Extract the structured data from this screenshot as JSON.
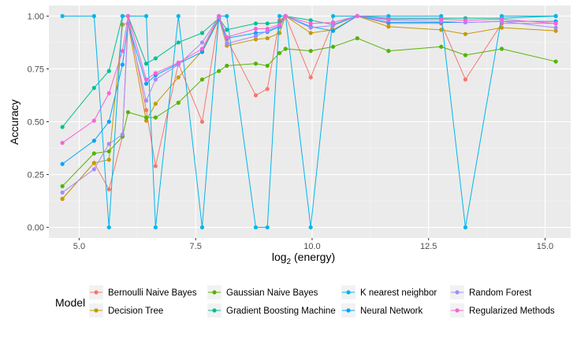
{
  "chart_data": {
    "type": "line",
    "title": "",
    "xlabel_main": "log",
    "xlabel_sub": "2",
    "xlabel_rest": " (energy)",
    "ylabel": "Accuracy",
    "xlim": [
      4.35,
      15.55
    ],
    "ylim": [
      -0.05,
      1.05
    ],
    "x_ticks": [
      5.0,
      7.5,
      10.0,
      12.5,
      15.0
    ],
    "x_tick_labels": [
      "5.0",
      "7.5",
      "10.0",
      "12.5",
      "15.0"
    ],
    "y_ticks": [
      0.0,
      0.25,
      0.5,
      0.75,
      1.0
    ],
    "y_tick_labels": [
      "0.00",
      "0.25",
      "0.50",
      "0.75",
      "1.00"
    ],
    "grid": true,
    "legend_title": "Model",
    "legend_position": "bottom",
    "x": [
      4.64,
      5.32,
      5.64,
      5.93,
      6.05,
      6.44,
      6.64,
      7.13,
      7.64,
      8.0,
      8.17,
      8.79,
      9.04,
      9.3,
      9.43,
      9.97,
      10.45,
      10.97,
      11.64,
      12.77,
      13.29,
      14.07,
      15.23
    ],
    "series": [
      {
        "name": "Bernoulli Naive Bayes",
        "color": "#F8766D",
        "values": [
          0.135,
          0.305,
          0.18,
          0.43,
          1.0,
          0.555,
          0.29,
          0.775,
          0.5,
          1.0,
          0.89,
          0.625,
          0.655,
          0.98,
          1.0,
          0.71,
          0.97,
          1.0,
          0.965,
          0.965,
          0.7,
          0.965,
          0.965
        ]
      },
      {
        "name": "Decision Tree",
        "color": "#C49A00",
        "values": [
          0.135,
          0.305,
          0.32,
          0.96,
          0.965,
          0.505,
          0.585,
          0.71,
          0.835,
          0.99,
          0.86,
          0.89,
          0.895,
          0.92,
          1.0,
          0.92,
          0.935,
          1.0,
          0.95,
          0.935,
          0.915,
          0.945,
          0.93
        ]
      },
      {
        "name": "Gaussian Naive Bayes",
        "color": "#53B400",
        "values": [
          0.195,
          0.35,
          0.36,
          0.43,
          0.545,
          0.52,
          0.52,
          0.59,
          0.7,
          0.74,
          0.765,
          0.775,
          0.765,
          0.825,
          0.845,
          0.835,
          0.855,
          0.895,
          0.835,
          0.855,
          0.815,
          0.845,
          0.785
        ]
      },
      {
        "name": "Gradient Boosting Machine",
        "color": "#00C094",
        "values": [
          0.475,
          0.66,
          0.74,
          1.0,
          1.0,
          0.775,
          0.8,
          0.875,
          0.92,
          0.99,
          0.935,
          0.965,
          0.965,
          0.97,
          1.0,
          0.98,
          0.96,
          1.0,
          0.99,
          0.99,
          0.99,
          0.99,
          1.0
        ]
      },
      {
        "name": "K nearest neighbor",
        "color": "#00B6EB",
        "values": [
          1.0,
          1.0,
          0.0,
          1.0,
          1.0,
          1.0,
          0.0,
          1.0,
          0.0,
          1.0,
          1.0,
          0.0,
          0.0,
          1.0,
          1.0,
          0.0,
          1.0,
          1.0,
          1.0,
          1.0,
          0.0,
          1.0,
          1.0
        ]
      },
      {
        "name": "Neural Network",
        "color": "#06A4FF",
        "values": [
          0.3,
          0.41,
          0.5,
          0.77,
          0.965,
          0.68,
          0.72,
          0.775,
          0.83,
          0.985,
          0.895,
          0.92,
          0.925,
          0.95,
          1.0,
          0.95,
          0.93,
          1.0,
          0.97,
          0.97,
          0.97,
          0.975,
          0.975
        ]
      },
      {
        "name": "Random Forest",
        "color": "#A58AFF",
        "values": [
          0.165,
          0.275,
          0.395,
          0.44,
          0.965,
          0.6,
          0.7,
          0.77,
          0.875,
          0.995,
          0.87,
          0.905,
          0.93,
          0.955,
          1.0,
          0.945,
          0.955,
          1.0,
          0.98,
          0.975,
          0.97,
          0.975,
          0.945
        ]
      },
      {
        "name": "Regularized Methods",
        "color": "#FB61D7",
        "values": [
          0.4,
          0.505,
          0.635,
          0.835,
          1.0,
          0.7,
          0.73,
          0.78,
          0.845,
          1.0,
          0.9,
          0.94,
          0.94,
          0.96,
          1.0,
          0.965,
          0.97,
          1.0,
          0.985,
          0.985,
          0.98,
          0.985,
          0.965
        ]
      }
    ]
  }
}
